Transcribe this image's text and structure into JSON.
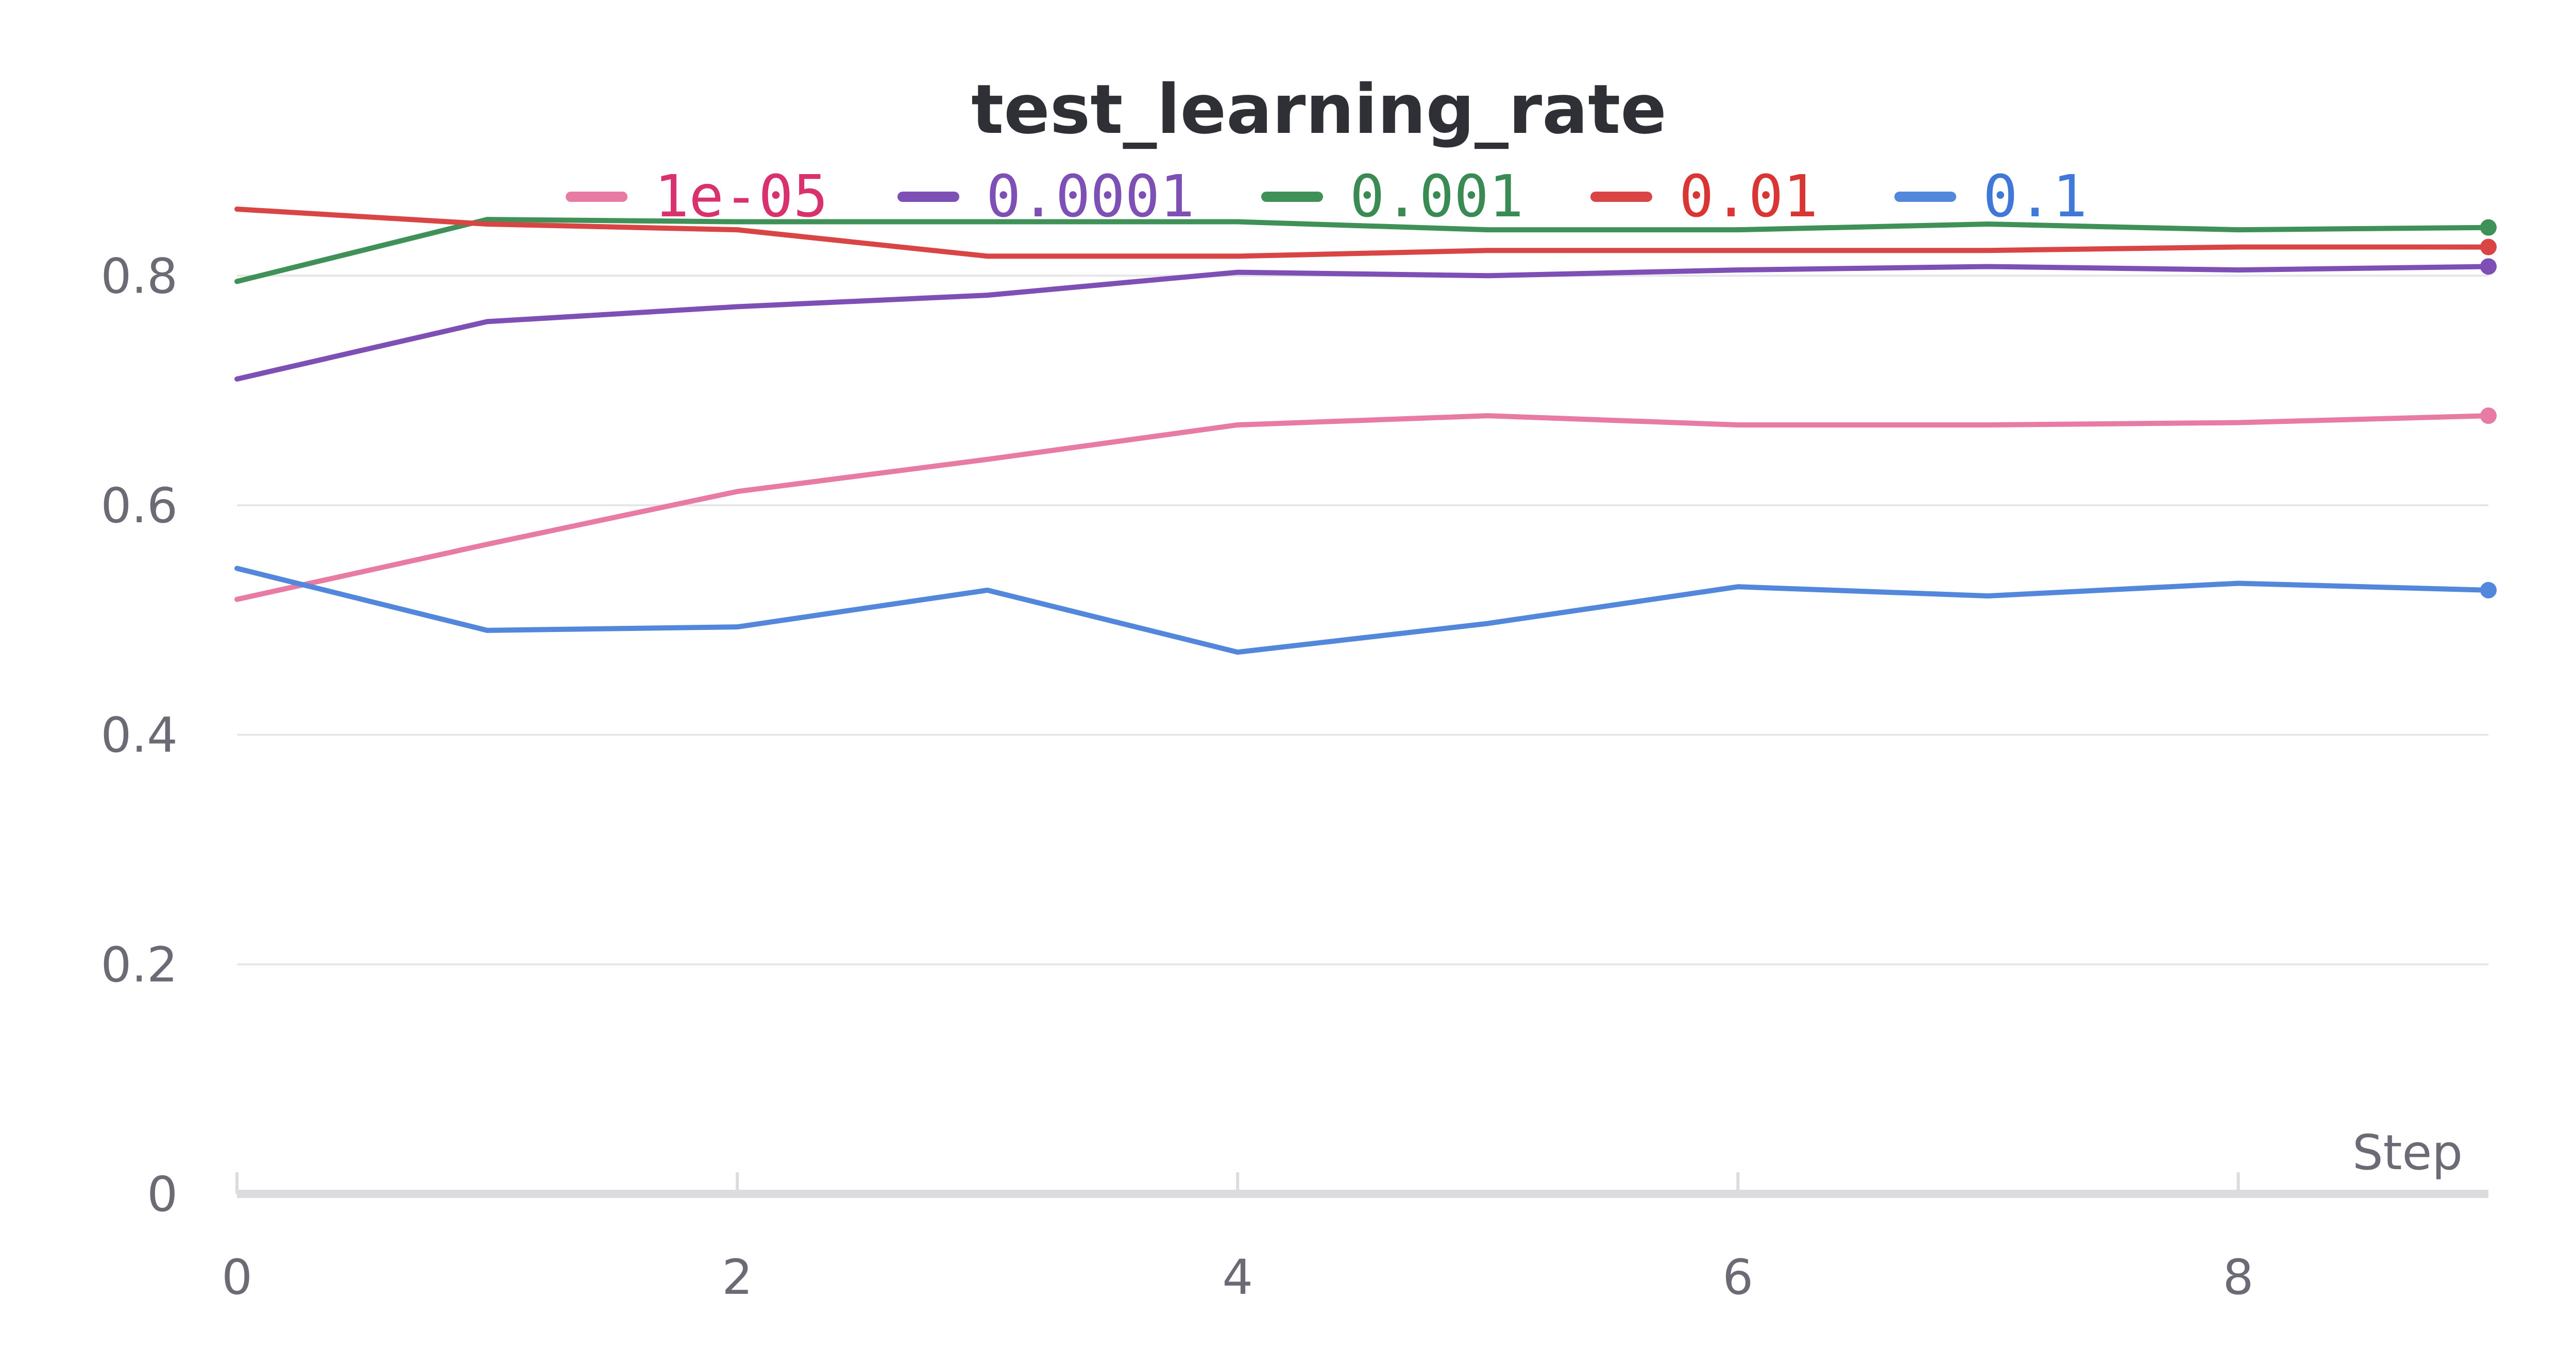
{
  "chart_data": {
    "type": "line",
    "title": "test_learning_rate",
    "xlabel": "Step",
    "ylabel": "",
    "x": [
      0,
      1,
      2,
      3,
      4,
      5,
      6,
      7,
      8,
      9
    ],
    "xlim": [
      0,
      9
    ],
    "ylim": [
      0,
      0.88
    ],
    "x_ticks": [
      0,
      2,
      4,
      6,
      8
    ],
    "y_ticks": [
      0,
      0.2,
      0.4,
      0.6,
      0.8
    ],
    "x_tick_labels": [
      "0",
      "2",
      "4",
      "6",
      "8"
    ],
    "y_tick_labels": [
      "0",
      "0.2",
      "0.4",
      "0.6",
      "0.8"
    ],
    "grid": true,
    "legend_position": "top-center",
    "series": [
      {
        "name": "1e-05",
        "color": "#e87ba3",
        "text_color": "#d9306e",
        "values": [
          0.518,
          0.566,
          0.612,
          0.64,
          0.67,
          0.678,
          0.67,
          0.67,
          0.672,
          0.678
        ]
      },
      {
        "name": "0.0001",
        "color": "#7e4fb5",
        "text_color": "#7e4fb5",
        "values": [
          0.71,
          0.76,
          0.773,
          0.783,
          0.803,
          0.8,
          0.805,
          0.808,
          0.805,
          0.808
        ]
      },
      {
        "name": "0.001",
        "color": "#3f9158",
        "text_color": "#3a8a53",
        "values": [
          0.795,
          0.849,
          0.847,
          0.847,
          0.847,
          0.84,
          0.84,
          0.845,
          0.84,
          0.842
        ]
      },
      {
        "name": "0.01",
        "color": "#d94545",
        "text_color": "#d93535",
        "values": [
          0.858,
          0.845,
          0.84,
          0.817,
          0.817,
          0.822,
          0.822,
          0.822,
          0.825,
          0.825
        ]
      },
      {
        "name": "0.1",
        "color": "#5287db",
        "text_color": "#3f78d9",
        "values": [
          0.545,
          0.491,
          0.494,
          0.526,
          0.472,
          0.497,
          0.529,
          0.521,
          0.532,
          0.526
        ]
      }
    ]
  }
}
